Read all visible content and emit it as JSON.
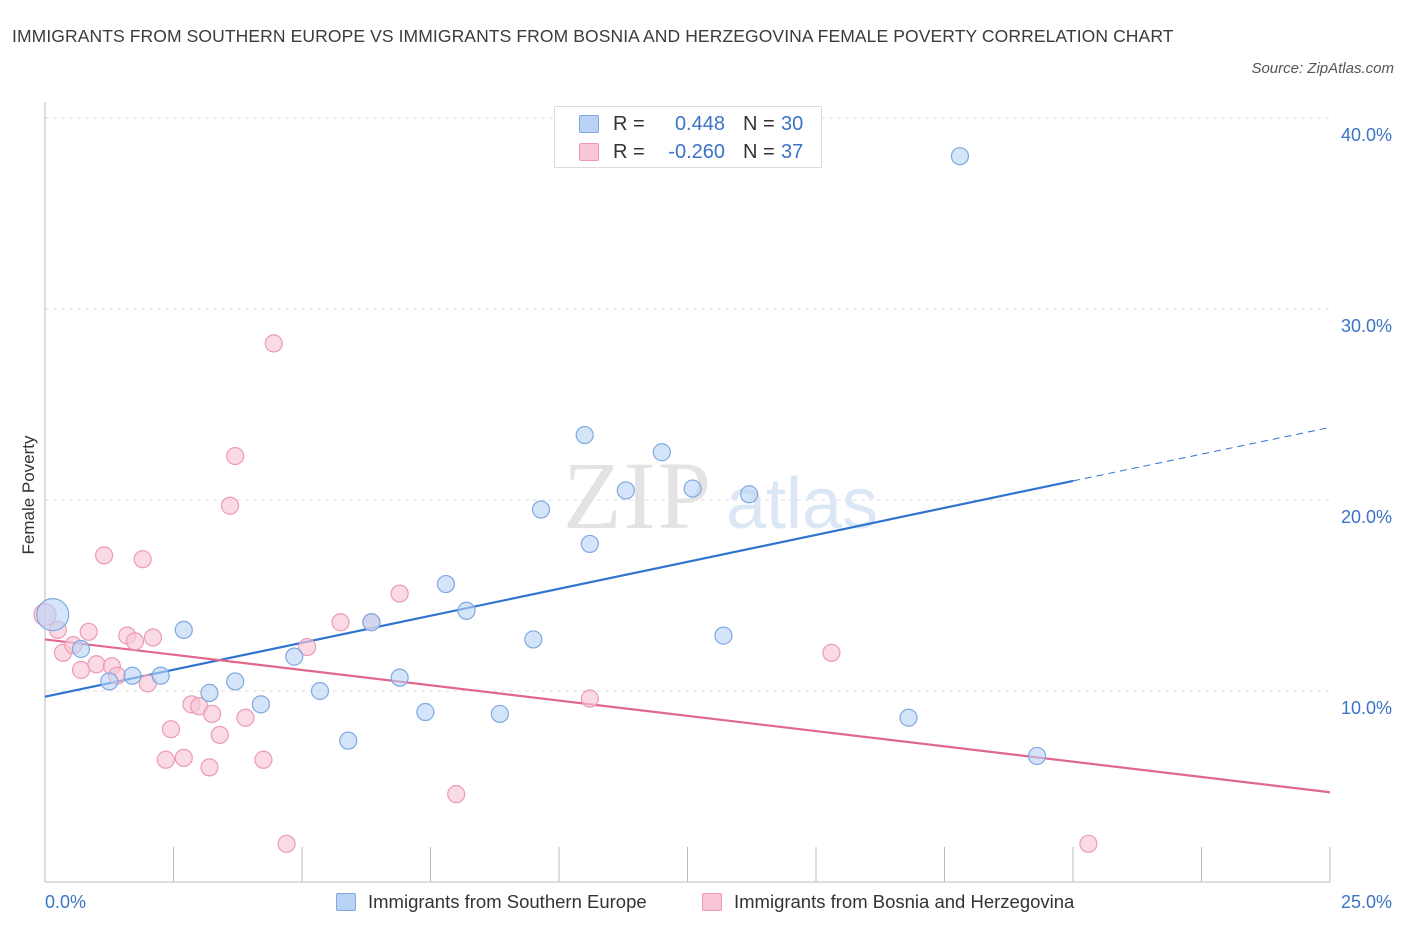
{
  "title": "IMMIGRANTS FROM SOUTHERN EUROPE VS IMMIGRANTS FROM BOSNIA AND HERZEGOVINA FEMALE POVERTY CORRELATION CHART",
  "source": "Source: ZipAtlas.com",
  "watermark": {
    "zip": "ZIP",
    "atlas": "atlas"
  },
  "legend": {
    "rows": [
      {
        "r_label": "R =",
        "r_value": "0.448",
        "n_label": "N =",
        "n_value": "30"
      },
      {
        "r_label": "R =",
        "r_value": "-0.260",
        "n_label": "N =",
        "n_value": "37"
      }
    ]
  },
  "colors": {
    "blue_fill": "#b9d3f5",
    "blue_stroke": "#7fa8e0",
    "blue_line": "#2f74d0",
    "pink_fill": "#f8c6d6",
    "pink_stroke": "#ee9ab5",
    "pink_line": "#e0688f",
    "axis_text": "#3b73c7",
    "grid": "#dddddd"
  },
  "chart_data": {
    "type": "scatter",
    "title": "IMMIGRANTS FROM SOUTHERN EUROPE VS IMMIGRANTS FROM BOSNIA AND HERZEGOVINA FEMALE POVERTY CORRELATION CHART",
    "xlabel": "",
    "ylabel": "Female Poverty",
    "xlim": [
      0,
      25
    ],
    "ylim": [
      0,
      40
    ],
    "x_tick_labels": [
      "0.0%",
      "25.0%"
    ],
    "y_ticks": [
      10,
      20,
      30,
      40
    ],
    "y_tick_labels": [
      "10.0%",
      "20.0%",
      "30.0%",
      "40.0%"
    ],
    "grid": true,
    "legend_position": "top-center",
    "series": [
      {
        "name": "Immigrants from Southern Europe",
        "color": "blue",
        "points": [
          [
            0.15,
            14.0
          ],
          [
            0.7,
            12.2
          ],
          [
            1.25,
            10.5
          ],
          [
            1.7,
            10.8
          ],
          [
            2.25,
            10.8
          ],
          [
            2.7,
            13.2
          ],
          [
            3.2,
            9.9
          ],
          [
            3.7,
            10.5
          ],
          [
            4.2,
            9.3
          ],
          [
            4.85,
            11.8
          ],
          [
            5.35,
            10.0
          ],
          [
            5.9,
            7.4
          ],
          [
            6.35,
            13.6
          ],
          [
            6.9,
            10.7
          ],
          [
            7.4,
            8.9
          ],
          [
            7.8,
            15.6
          ],
          [
            8.2,
            14.2
          ],
          [
            8.85,
            8.8
          ],
          [
            9.5,
            12.7
          ],
          [
            9.65,
            19.5
          ],
          [
            10.5,
            23.4
          ],
          [
            10.6,
            17.7
          ],
          [
            11.3,
            20.5
          ],
          [
            12.0,
            22.5
          ],
          [
            12.6,
            20.6
          ],
          [
            13.7,
            20.3
          ],
          [
            13.2,
            12.9
          ],
          [
            16.8,
            8.6
          ],
          [
            17.8,
            38.0
          ],
          [
            19.3,
            6.6
          ]
        ],
        "trend": {
          "x": [
            0,
            20
          ],
          "y": [
            9.7,
            21.0
          ]
        },
        "trend_extension": {
          "x": [
            20,
            25
          ],
          "y": [
            21.0,
            23.8
          ]
        }
      },
      {
        "name": "Immigrants from Bosnia and Herzegovina",
        "color": "pink",
        "points": [
          [
            0.0,
            14.0
          ],
          [
            0.25,
            13.2
          ],
          [
            0.35,
            12.0
          ],
          [
            0.55,
            12.4
          ],
          [
            0.7,
            11.1
          ],
          [
            0.85,
            13.1
          ],
          [
            1.0,
            11.4
          ],
          [
            1.15,
            17.1
          ],
          [
            1.3,
            11.3
          ],
          [
            1.4,
            10.8
          ],
          [
            1.6,
            12.9
          ],
          [
            1.75,
            12.6
          ],
          [
            1.9,
            16.9
          ],
          [
            2.0,
            10.4
          ],
          [
            2.1,
            12.8
          ],
          [
            2.35,
            6.4
          ],
          [
            2.45,
            8.0
          ],
          [
            2.7,
            6.5
          ],
          [
            2.85,
            9.3
          ],
          [
            3.0,
            9.2
          ],
          [
            3.2,
            6.0
          ],
          [
            3.25,
            8.8
          ],
          [
            3.4,
            7.7
          ],
          [
            3.6,
            19.7
          ],
          [
            3.7,
            22.3
          ],
          [
            3.9,
            8.6
          ],
          [
            4.25,
            6.4
          ],
          [
            4.45,
            28.2
          ],
          [
            4.7,
            2.0
          ],
          [
            5.1,
            12.3
          ],
          [
            5.75,
            13.6
          ],
          [
            6.35,
            13.6
          ],
          [
            6.9,
            15.1
          ],
          [
            8.0,
            4.6
          ],
          [
            10.6,
            9.6
          ],
          [
            15.3,
            12.0
          ],
          [
            20.3,
            2.0
          ]
        ],
        "trend": {
          "x": [
            0,
            25
          ],
          "y": [
            12.7,
            4.7
          ]
        }
      }
    ]
  }
}
